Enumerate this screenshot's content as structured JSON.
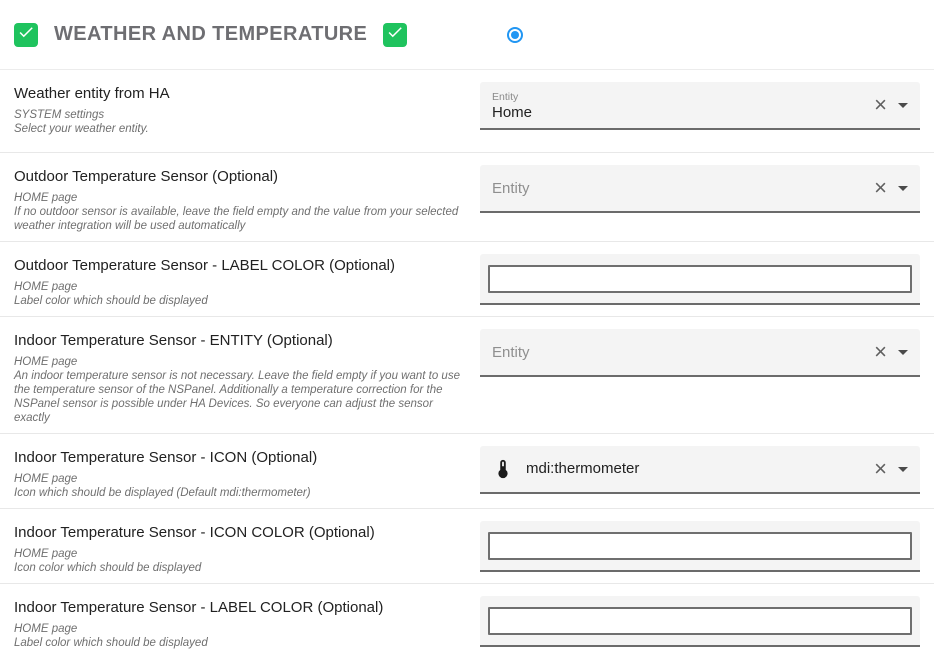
{
  "header": {
    "title": "WEATHER AND TEMPERATURE",
    "left_checkbox_checked": true,
    "right_checkbox_checked": true,
    "radio_selected": true
  },
  "colors": {
    "checkbox_green": "#1fc35e",
    "radio_blue": "#2196F3"
  },
  "icons": {
    "checkbox_checkmark": "✓",
    "clear": "×",
    "dropdown_caret": "▼",
    "thermometer": "mdi:thermometer"
  },
  "rows": [
    {
      "label": "Weather entity from HA",
      "scope": "SYSTEM settings",
      "description": "Select your weather entity.",
      "field": {
        "type": "select",
        "name": "weather-entity-select",
        "label": "Entity",
        "value": "Home"
      }
    },
    {
      "label": "Outdoor Temperature Sensor (Optional)",
      "scope": "HOME page",
      "description": "If no outdoor sensor is available, leave the field empty and the value from your selected weather integration will be used automatically",
      "field": {
        "type": "select",
        "name": "outdoor-temp-entity-select",
        "placeholder": "Entity"
      }
    },
    {
      "label": "Outdoor Temperature Sensor - LABEL COLOR (Optional)",
      "scope": "HOME page",
      "description": "Label color which should be displayed",
      "field": {
        "type": "text",
        "name": "outdoor-temp-label-color-input",
        "value": ""
      }
    },
    {
      "label": "Indoor Temperature Sensor - ENTITY (Optional)",
      "scope": "HOME page",
      "description": "An indoor temperature sensor is not necessary. Leave the field empty if you want to use the temperature sensor of the NSPanel. Additionally a temperature correction for the NSPanel sensor is possible under HA Devices. So everyone can adjust the sensor exactly",
      "field": {
        "type": "select",
        "name": "indoor-temp-entity-select",
        "placeholder": "Entity"
      }
    },
    {
      "label": "Indoor Temperature Sensor - ICON (Optional)",
      "scope": "HOME page",
      "description": "Icon which should be displayed (Default mdi:thermometer)",
      "field": {
        "type": "select",
        "name": "indoor-temp-icon-select",
        "value": "mdi:thermometer",
        "icon": "thermometer"
      }
    },
    {
      "label": "Indoor Temperature Sensor - ICON COLOR (Optional)",
      "scope": "HOME page",
      "description": "Icon color which should be displayed",
      "field": {
        "type": "text",
        "name": "indoor-temp-icon-color-input",
        "value": ""
      }
    },
    {
      "label": "Indoor Temperature Sensor - LABEL COLOR (Optional)",
      "scope": "HOME page",
      "description": "Label color which should be displayed",
      "field": {
        "type": "text",
        "name": "indoor-temp-label-color-input",
        "value": ""
      }
    }
  ]
}
